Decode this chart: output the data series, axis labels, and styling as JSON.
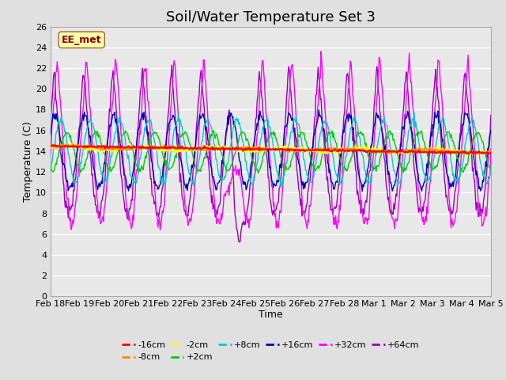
{
  "title": "Soil/Water Temperature Set 3",
  "xlabel": "Time",
  "ylabel": "Temperature (C)",
  "ylim": [
    0,
    26
  ],
  "yticks": [
    0,
    2,
    4,
    6,
    8,
    10,
    12,
    14,
    16,
    18,
    20,
    22,
    24,
    26
  ],
  "date_labels": [
    "Feb 18",
    "Feb 19",
    "Feb 20",
    "Feb 21",
    "Feb 22",
    "Feb 23",
    "Feb 24",
    "Feb 25",
    "Feb 26",
    "Feb 27",
    "Feb 28",
    "Mar 1",
    "Mar 2",
    "Mar 3",
    "Mar 4",
    "Mar 5"
  ],
  "series_colors": {
    "-16cm": "#ff0000",
    "-8cm": "#ff8800",
    "-2cm": "#ffff00",
    "+2cm": "#00cc00",
    "+8cm": "#00cccc",
    "+16cm": "#0000bb",
    "+32cm": "#ff00ff",
    "+64cm": "#9900bb"
  },
  "watermark_text": "EE_met",
  "watermark_color": "#880000",
  "watermark_bg": "#ffffaa",
  "fig_bg": "#e0e0e0",
  "axes_bg": "#e8e8e8",
  "grid_color": "#ffffff",
  "title_fontsize": 13,
  "tick_fontsize": 8,
  "legend_fontsize": 8
}
